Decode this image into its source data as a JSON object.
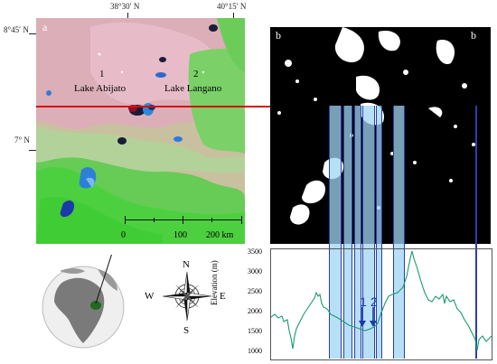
{
  "coords": {
    "lon1": "38°30′ N",
    "lon2": "40°15′ N",
    "lat1": "8°45′ N",
    "lat2": "7° N"
  },
  "panel_a": {
    "letter": "a",
    "lake1_num": "1",
    "lake1_name": "Lake Abijato",
    "lake2_num": "2",
    "lake2_name": "Lake Langano",
    "scale_ticks": [
      "0",
      "100",
      "200 km"
    ]
  },
  "panel_b": {
    "letter_left": "b",
    "letter_right": "b"
  },
  "compass": {
    "n": "N",
    "s": "S",
    "e": "E",
    "w": "W"
  },
  "profile": {
    "ylabel": "Elevation (m)",
    "yticks": [
      "3500",
      "3000",
      "2500",
      "2000",
      "1500",
      "1000"
    ],
    "ymin": 900,
    "ymax": 3650,
    "marker1": "1",
    "marker2": "2"
  },
  "colors": {
    "transect": "#d01010",
    "band": "#9fd4f2",
    "band_edge": "#2a3fb0",
    "profile_line": "#1a9a6a",
    "water": "#2e7fd6",
    "vegetation": "#5bd05b",
    "bare": "#e8b7b7"
  }
}
